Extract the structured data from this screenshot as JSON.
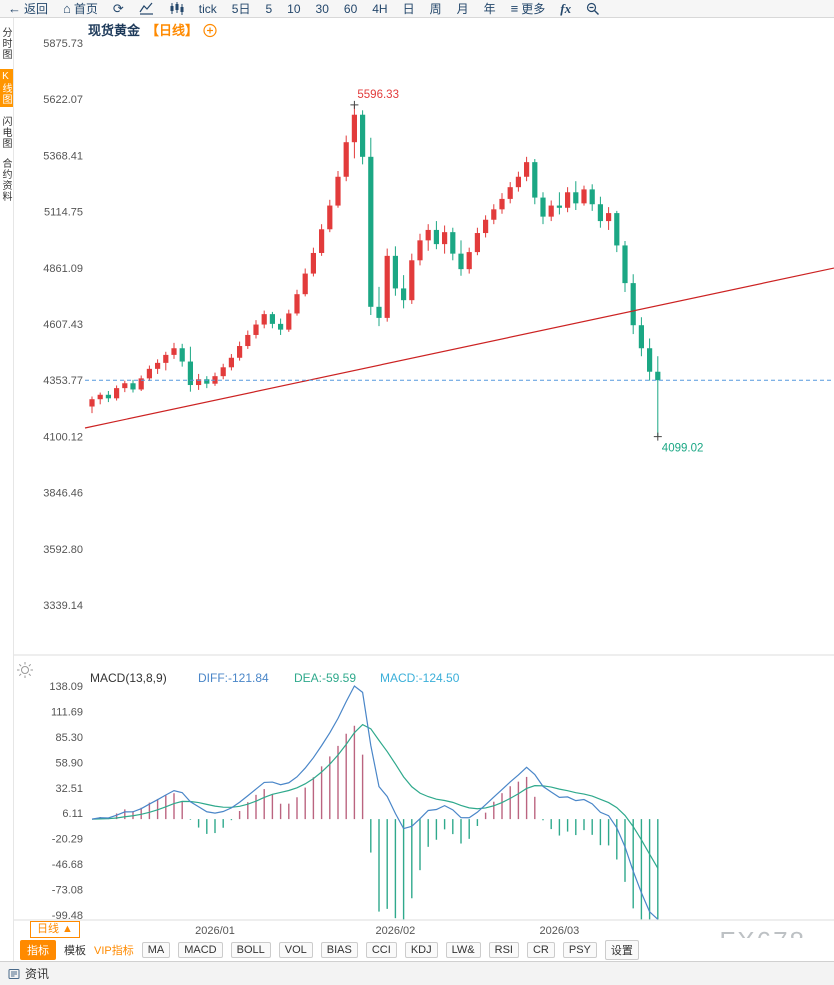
{
  "topbar": {
    "back": "返回",
    "home": "首页",
    "periods": [
      "tick",
      "5日",
      "5",
      "10",
      "30",
      "60",
      "4H",
      "日",
      "周",
      "月",
      "年"
    ],
    "more": "更多",
    "fx": "fx"
  },
  "sidebar": {
    "items": [
      "分时图",
      "K线图",
      "闪电图",
      "合约资料"
    ]
  },
  "bottom": {
    "period_selector": "日线 ▲",
    "tabs": [
      "指标",
      "模板",
      "VIP指标",
      "MA",
      "MACD",
      "BOLL",
      "VOL",
      "BIAS",
      "CCI",
      "KDJ",
      "LW&",
      "RSI",
      "CR",
      "PSY",
      "设置"
    ],
    "watermark": "FX678"
  },
  "statusbar": {
    "news_tab": "资讯"
  },
  "colors": {
    "up": "#e23b3b",
    "down": "#1ba784",
    "trend_line": "#cc2222",
    "last_price_line": "#5599dd",
    "diff_line": "#4a86c8",
    "dea_line": "#2fa98c",
    "hist_pos": "#bb6480",
    "hist_neg": "#2fa98c",
    "macd_value_text": "#3bafd9",
    "high_label": "#e23b3b",
    "low_label": "#1ba784"
  },
  "chart_data": [
    {
      "type": "candlestick",
      "title": "现货黄金",
      "period_tag": "【日线】",
      "high_label": "5596.33",
      "low_label": "4099.02",
      "last_price": 4353.77,
      "y_axis_labels": [
        "5875.73",
        "5622.07",
        "5368.41",
        "5114.75",
        "4861.09",
        "4607.43",
        "4353.77",
        "4100.12",
        "3846.46",
        "3592.80",
        "3339.14"
      ],
      "x_labels": [
        "2026/01",
        "2026/02",
        "2026/03"
      ],
      "x_label_indices": [
        15,
        37,
        57
      ],
      "trend_line": {
        "price_at_left": 4138,
        "price_at_right": 4860
      },
      "candles": [
        [
          4235,
          4280,
          4205,
          4268
        ],
        [
          4268,
          4298,
          4245,
          4288
        ],
        [
          4288,
          4305,
          4255,
          4272
        ],
        [
          4272,
          4330,
          4262,
          4318
        ],
        [
          4318,
          4352,
          4300,
          4340
        ],
        [
          4340,
          4355,
          4298,
          4312
        ],
        [
          4312,
          4375,
          4305,
          4362
        ],
        [
          4362,
          4420,
          4350,
          4405
        ],
        [
          4405,
          4448,
          4382,
          4432
        ],
        [
          4432,
          4482,
          4398,
          4468
        ],
        [
          4468,
          4522,
          4450,
          4498
        ],
        [
          4498,
          4518,
          4415,
          4438
        ],
        [
          4438,
          4505,
          4302,
          4332
        ],
        [
          4332,
          4382,
          4310,
          4358
        ],
        [
          4358,
          4372,
          4318,
          4338
        ],
        [
          4338,
          4388,
          4328,
          4372
        ],
        [
          4372,
          4428,
          4358,
          4412
        ],
        [
          4412,
          4472,
          4398,
          4455
        ],
        [
          4455,
          4528,
          4442,
          4508
        ],
        [
          4508,
          4578,
          4495,
          4558
        ],
        [
          4558,
          4625,
          4542,
          4605
        ],
        [
          4605,
          4668,
          4588,
          4652
        ],
        [
          4652,
          4662,
          4588,
          4608
        ],
        [
          4608,
          4632,
          4558,
          4582
        ],
        [
          4582,
          4672,
          4572,
          4655
        ],
        [
          4655,
          4762,
          4645,
          4742
        ],
        [
          4742,
          4858,
          4732,
          4835
        ],
        [
          4835,
          4952,
          4822,
          4928
        ],
        [
          4928,
          5058,
          4915,
          5035
        ],
        [
          5035,
          5168,
          5022,
          5142
        ],
        [
          5142,
          5298,
          5132,
          5272
        ],
        [
          5272,
          5458,
          5252,
          5428
        ],
        [
          5428,
          5596.33,
          5355,
          5552
        ],
        [
          5552,
          5572,
          5328,
          5362
        ],
        [
          5362,
          5448,
          4648,
          4685
        ],
        [
          4685,
          4775,
          4598,
          4635
        ],
        [
          4635,
          4948,
          4618,
          4915
        ],
        [
          4915,
          4958,
          4735,
          4768
        ],
        [
          4768,
          4828,
          4678,
          4715
        ],
        [
          4715,
          4925,
          4698,
          4895
        ],
        [
          4895,
          5015,
          4872,
          4985
        ],
        [
          4985,
          5058,
          4938,
          5032
        ],
        [
          5032,
          5072,
          4945,
          4968
        ],
        [
          4968,
          5052,
          4925,
          5022
        ],
        [
          5022,
          5042,
          4895,
          4925
        ],
        [
          4925,
          4985,
          4825,
          4855
        ],
        [
          4855,
          4952,
          4835,
          4932
        ],
        [
          4932,
          5042,
          4918,
          5018
        ],
        [
          5018,
          5098,
          4998,
          5078
        ],
        [
          5078,
          5148,
          5058,
          5125
        ],
        [
          5125,
          5198,
          5105,
          5172
        ],
        [
          5172,
          5248,
          5152,
          5225
        ],
        [
          5225,
          5295,
          5205,
          5272
        ],
        [
          5272,
          5362,
          5252,
          5338
        ],
        [
          5338,
          5352,
          5148,
          5178
        ],
        [
          5178,
          5202,
          5058,
          5092
        ],
        [
          5092,
          5165,
          5072,
          5142
        ],
        [
          5142,
          5202,
          5102,
          5132
        ],
        [
          5132,
          5225,
          5112,
          5202
        ],
        [
          5202,
          5252,
          5122,
          5152
        ],
        [
          5152,
          5232,
          5142,
          5215
        ],
        [
          5215,
          5238,
          5118,
          5148
        ],
        [
          5148,
          5182,
          5042,
          5072
        ],
        [
          5072,
          5135,
          5032,
          5108
        ],
        [
          5108,
          5118,
          4932,
          4962
        ],
        [
          4962,
          4982,
          4752,
          4792
        ],
        [
          4792,
          4832,
          4562,
          4602
        ],
        [
          4602,
          4638,
          4462,
          4498
        ],
        [
          4498,
          4542,
          4352,
          4392
        ],
        [
          4392,
          4462,
          4099.02,
          4353.77
        ]
      ]
    },
    {
      "type": "macd",
      "label": "MACD(13,8,9)",
      "diff_text": "DIFF:-121.84",
      "dea_text": "DEA:-59.59",
      "macd_text": "MACD:-124.50",
      "params": {
        "fast": 8,
        "slow": 13,
        "signal": 9
      },
      "y_axis_labels": [
        "138.09",
        "111.69",
        "85.30",
        "58.90",
        "32.51",
        "6.11",
        "-20.29",
        "-46.68",
        "-73.08",
        "-99.48"
      ]
    }
  ]
}
